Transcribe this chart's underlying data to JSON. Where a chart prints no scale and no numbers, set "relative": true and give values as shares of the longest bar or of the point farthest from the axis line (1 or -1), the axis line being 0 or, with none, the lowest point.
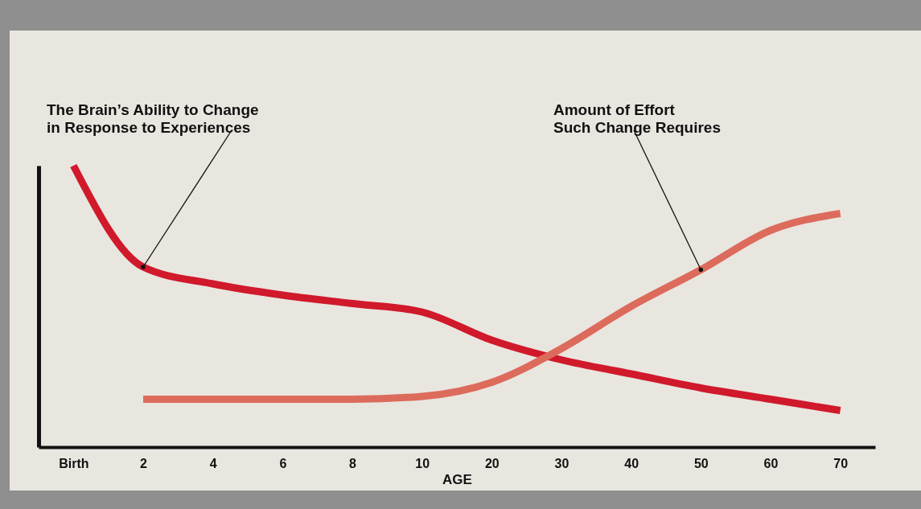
{
  "chart_data": {
    "type": "line",
    "relative": true,
    "xlabel": "AGE",
    "categories": [
      "Birth",
      "2",
      "4",
      "6",
      "8",
      "10",
      "20",
      "30",
      "40",
      "50",
      "60",
      "70"
    ],
    "series": [
      {
        "color": "#d0192b",
        "values": [
          1,
          0.64,
          0.58,
          0.54,
          0.51,
          0.48,
          0.38,
          0.31,
          0.26,
          0.21,
          0.17,
          0.13
        ]
      },
      {
        "color": "#dc6b5c",
        "values": [
          null,
          0.17,
          0.17,
          0.17,
          0.17,
          0.18,
          0.23,
          0.35,
          0.5,
          0.63,
          0.77,
          0.83
        ]
      }
    ],
    "annotations": [
      {
        "text": "The Brain’s Ability to Change\nin Response to Experiences",
        "x": "2",
        "y": 0.64
      },
      {
        "text": "Amount of Effort\nSuch Change Requires",
        "x": "50",
        "y": 0.63
      }
    ]
  }
}
